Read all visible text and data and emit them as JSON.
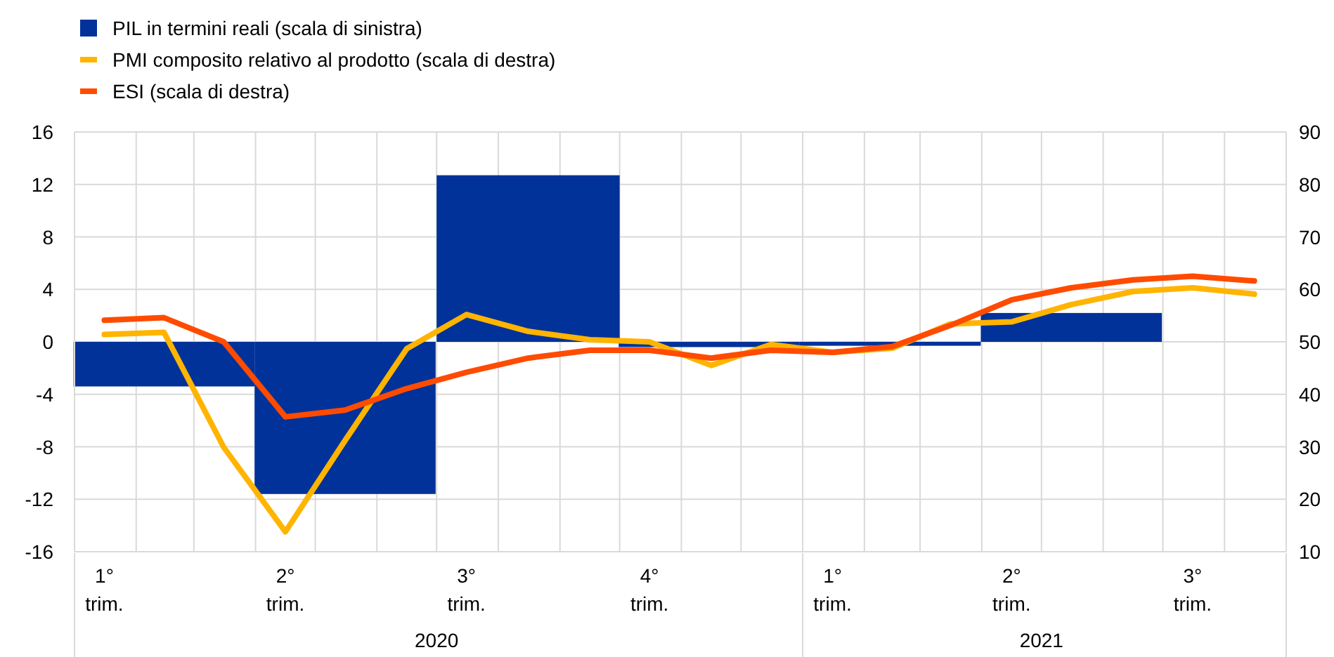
{
  "chart_data": {
    "type": "bar",
    "legend": "top left",
    "grid": true,
    "xlim": [
      "2020-01",
      "2021-09"
    ],
    "xticks": [
      {
        "value": "2020-01-16",
        "label": "1° trim."
      },
      {
        "value": "2020-04-16",
        "label": "2° trim."
      },
      {
        "value": "2020-07-16",
        "label": "3° trim."
      },
      {
        "value": "2020-10-16",
        "label": "4° trim."
      },
      {
        "value": "2021-01-16",
        "label": "1° trim."
      },
      {
        "value": "2021-04-16",
        "label": "2° trim."
      },
      {
        "value": "2021-07-16",
        "label": "3° trim."
      }
    ],
    "x2lim": [
      "2020-01",
      "2021-09"
    ],
    "x2ticks": [
      {
        "value": "2020-01-01",
        "label": null
      },
      {
        "value": "2020-07-01",
        "label": "2020"
      },
      {
        "value": "2021-01-01",
        "label": null
      },
      {
        "value": "2021-05-01",
        "label": "2021"
      },
      {
        "value": "2021-09-01",
        "label": null
      }
    ],
    "ylim": [
      -16,
      16
    ],
    "yticks": [
      -16,
      -12,
      -8,
      -4,
      0,
      4,
      8,
      12,
      16
    ],
    "y2lim": [
      10,
      90
    ],
    "y2ticks": [
      10,
      20,
      30,
      40,
      50,
      60,
      70,
      80,
      90
    ],
    "series": [
      {
        "name": "PIL in termini reali (scala di sinistra)",
        "color": "#003299",
        "x": [
          "2020-02-15",
          "2020-05-16",
          "2020-08-16",
          "2020-11-15",
          "2021-02-14",
          "2021-05-16"
        ],
        "values": [
          -3.4,
          -11.6,
          12.7,
          -0.4,
          -0.3,
          2.2
        ]
      },
      {
        "name": "PMI composito relativo al prodotto (scala di destra)",
        "type": "line",
        "axis": "y2",
        "color": "#ffb400",
        "x": [
          "2020-01-16",
          "2020-02-15",
          "2020-03-16",
          "2020-04-16",
          "2020-05-16",
          "2020-06-16",
          "2020-07-16",
          "2020-08-16",
          "2020-09-16",
          "2020-10-16",
          "2020-11-16",
          "2020-12-16",
          "2021-01-16",
          "2021-02-15",
          "2021-03-16",
          "2021-04-16",
          "2021-05-16",
          "2021-06-16",
          "2021-07-16",
          "2021-08-16"
        ],
        "values": [
          51.4,
          51.8,
          29.9,
          13.8,
          31.2,
          48.7,
          55.2,
          52.0,
          50.4,
          50.0,
          45.5,
          49.5,
          48.0,
          48.8,
          53.4,
          53.8,
          57.1,
          59.6,
          60.3,
          59.1
        ]
      },
      {
        "name": "ESI (scala di destra)",
        "type": "line",
        "axis": "y2",
        "color": "#ff4b00",
        "x": [
          "2020-01-16",
          "2020-02-15",
          "2020-03-16",
          "2020-04-16",
          "2020-05-16",
          "2020-06-16",
          "2020-07-16",
          "2020-08-16",
          "2020-09-16",
          "2020-10-16",
          "2020-11-16",
          "2020-12-16",
          "2021-01-16",
          "2021-02-15",
          "2021-03-16",
          "2021-04-16",
          "2021-05-16",
          "2021-06-16",
          "2021-07-16",
          "2021-08-16"
        ],
        "values": [
          54.1,
          54.6,
          50.0,
          35.7,
          37.0,
          41.1,
          44.2,
          46.9,
          48.4,
          48.4,
          46.9,
          48.4,
          48.0,
          49.1,
          53.1,
          58.0,
          60.3,
          61.8,
          62.5,
          61.6
        ]
      }
    ]
  }
}
